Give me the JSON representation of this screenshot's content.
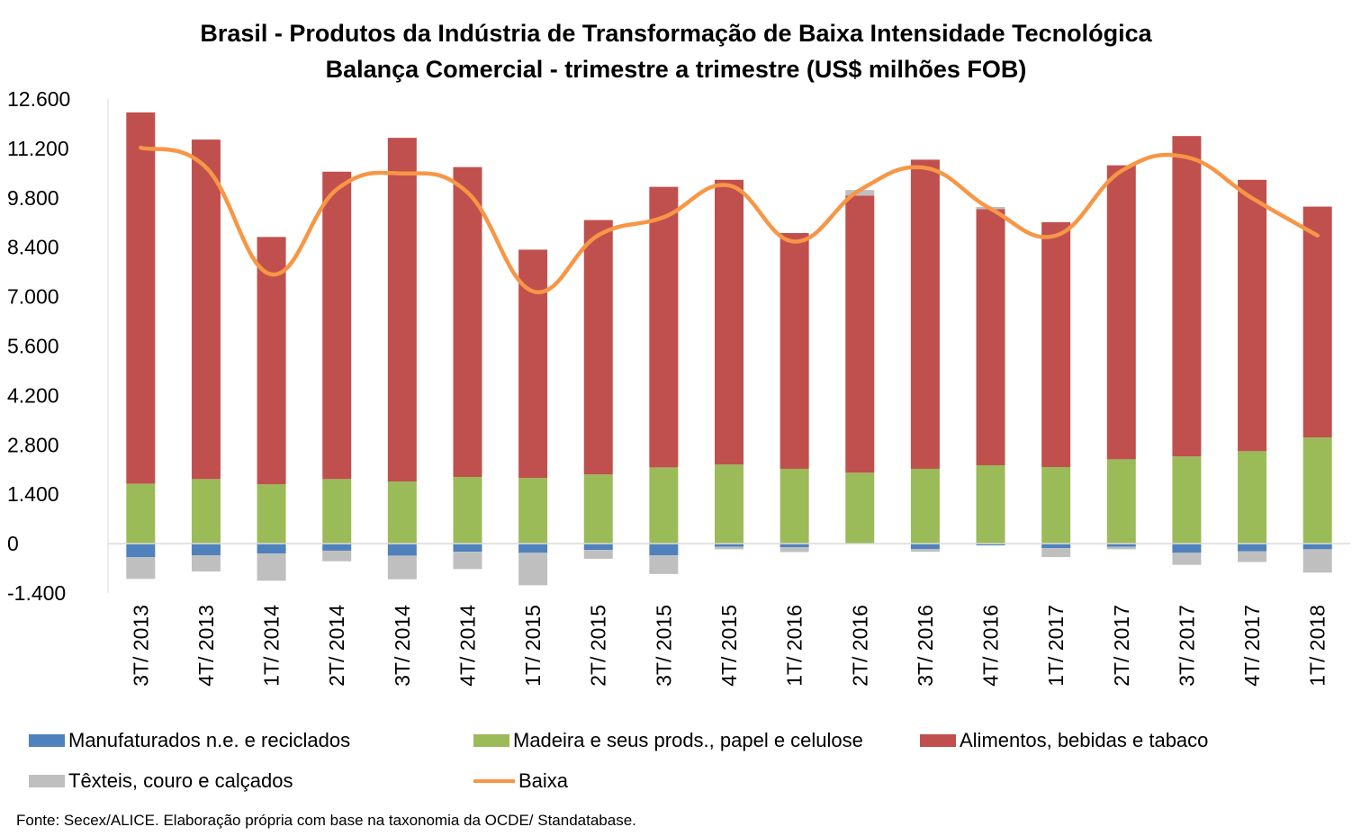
{
  "chart_data": {
    "type": "bar",
    "title": "Brasil - Produtos da Indústria de Transformação de Baixa Intensidade Tecnológica",
    "subtitle": "Balança Comercial - trimestre a trimestre (US$ milhões FOB)",
    "ylim": [
      -1400,
      12600
    ],
    "yticks": [
      -1400,
      0,
      1400,
      2800,
      4200,
      5600,
      7000,
      8400,
      9800,
      11200,
      12600
    ],
    "ytick_labels": [
      "-1.400",
      "0",
      "1.400",
      "2.800",
      "4.200",
      "5.600",
      "7.000",
      "8.400",
      "9.800",
      "11.200",
      "12.600"
    ],
    "grid": false,
    "legend_position": "bottom",
    "categories": [
      "3T/ 2013",
      "4T/ 2013",
      "1T/ 2014",
      "2T/ 2014",
      "3T/ 2014",
      "4T/ 2014",
      "1T/ 2015",
      "2T/ 2015",
      "3T/ 2015",
      "4T/ 2015",
      "1T/ 2016",
      "2T/ 2016",
      "3T/ 2016",
      "4T/ 2016",
      "1T/ 2017",
      "2T/ 2017",
      "3T/ 2017",
      "4T/ 2017",
      "1T/ 2018"
    ],
    "series": [
      {
        "name": "Manufaturados n.e. e reciclados",
        "color": "#4f81bd",
        "kind": "bar",
        "values": [
          -380,
          -330,
          -280,
          -200,
          -340,
          -230,
          -260,
          -180,
          -330,
          -90,
          -100,
          -10,
          -150,
          -50,
          -130,
          -90,
          -260,
          -220,
          -160
        ]
      },
      {
        "name": "Madeira e seus prods., papel e celulose",
        "color": "#9bbb59",
        "kind": "bar",
        "values": [
          1700,
          1830,
          1680,
          1830,
          1760,
          1890,
          1860,
          1960,
          2160,
          2240,
          2120,
          2010,
          2120,
          2220,
          2170,
          2390,
          2470,
          2620,
          3010
        ]
      },
      {
        "name": "Alimentos, bebidas e tabaco",
        "color": "#c0504d",
        "kind": "bar",
        "values": [
          10520,
          9620,
          7010,
          8710,
          9740,
          8780,
          6470,
          7210,
          7950,
          8070,
          6680,
          7850,
          8760,
          7260,
          6940,
          8330,
          9080,
          7690,
          6540
        ]
      },
      {
        "name": "Têxteis, couro e calçados",
        "color": "#bfbfbf",
        "kind": "bar",
        "values": [
          -620,
          -460,
          -770,
          -300,
          -670,
          -490,
          -920,
          -250,
          -530,
          -70,
          -140,
          160,
          -80,
          60,
          -250,
          -70,
          -340,
          -300,
          -660
        ]
      },
      {
        "name": "Baixa",
        "color": "#f79646",
        "kind": "line",
        "values": [
          11220,
          10660,
          7630,
          10040,
          10490,
          9950,
          7150,
          8740,
          9250,
          10150,
          8560,
          10020,
          10650,
          9490,
          8730,
          10560,
          10950,
          9790,
          8730
        ]
      }
    ]
  },
  "source": "Fonte: Secex/ALICE. Elaboração própria com base na taxonomia da OCDE/ Standatabase."
}
